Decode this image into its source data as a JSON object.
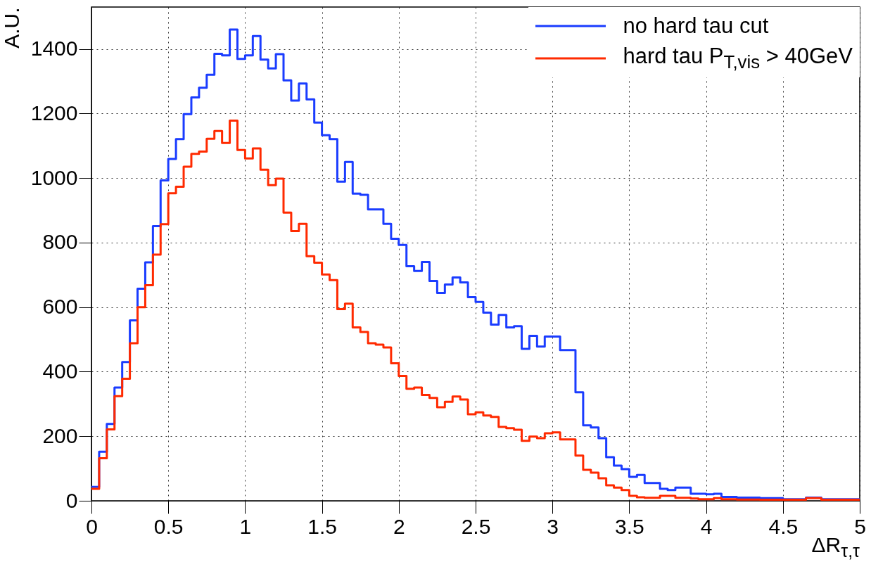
{
  "chart_data": {
    "type": "histogram",
    "xlabel": "ΔR$_{τ,τ}$",
    "ylabel": "A.U.",
    "bins": [
      0,
      0.05,
      0.1,
      0.15,
      0.2,
      0.25,
      0.3,
      0.35,
      0.4,
      0.45,
      0.5,
      0.55,
      0.6,
      0.65,
      0.7,
      0.75,
      0.8,
      0.85,
      0.9,
      0.95,
      1,
      1.05,
      1.1,
      1.15,
      1.2,
      1.25,
      1.3,
      1.35,
      1.4,
      1.45,
      1.5,
      1.55,
      1.6,
      1.65,
      1.7,
      1.75,
      1.8,
      1.85,
      1.9,
      1.95,
      2,
      2.05,
      2.1,
      2.15,
      2.2,
      2.25,
      2.3,
      2.35,
      2.4,
      2.45,
      2.5,
      2.55,
      2.6,
      2.65,
      2.7,
      2.75,
      2.8,
      2.85,
      2.9,
      2.95,
      3,
      3.05,
      3.1,
      3.15,
      3.2,
      3.25,
      3.3,
      3.35,
      3.4,
      3.45,
      3.5,
      3.55,
      3.6,
      3.65,
      3.7,
      3.75,
      3.8,
      3.85,
      3.9,
      3.95,
      4,
      4.05,
      4.1,
      4.15,
      4.2,
      4.25,
      4.3,
      4.35,
      4.4,
      4.45,
      4.5,
      4.55,
      4.6,
      4.65,
      4.7,
      4.75,
      4.8,
      4.85,
      4.9,
      4.95,
      5
    ],
    "series": [
      {
        "name": "no hard tau cut",
        "color": "#1a3cff",
        "values": [
          43,
          152,
          238,
          351,
          430,
          559,
          657,
          739,
          851,
          993,
          1059,
          1121,
          1198,
          1250,
          1280,
          1320,
          1385,
          1380,
          1460,
          1369,
          1380,
          1440,
          1367,
          1340,
          1384,
          1303,
          1240,
          1293,
          1244,
          1172,
          1133,
          1121,
          989,
          1050,
          952,
          948,
          903,
          903,
          858,
          812,
          793,
          727,
          712,
          740,
          681,
          644,
          670,
          692,
          677,
          631,
          616,
          583,
          546,
          576,
          537,
          541,
          471,
          511,
          478,
          509,
          509,
          467,
          467,
          336,
          234,
          227,
          194,
          135,
          109,
          98,
          74,
          80,
          55,
          55,
          37,
          33,
          41,
          41,
          22,
          22,
          20,
          22,
          12,
          12,
          10,
          10,
          10,
          8,
          8,
          8,
          5,
          5,
          5,
          10,
          10,
          5,
          5,
          5,
          5,
          5
        ]
      },
      {
        "name": "hard tau P$_{T,vis}$ > 40GeV",
        "color": "#ff2a00",
        "values": [
          37,
          132,
          221,
          324,
          378,
          488,
          600,
          668,
          763,
          857,
          953,
          973,
          1035,
          1075,
          1082,
          1122,
          1146,
          1109,
          1178,
          1087,
          1061,
          1092,
          1026,
          978,
          998,
          893,
          836,
          858,
          758,
          738,
          701,
          684,
          594,
          611,
          537,
          523,
          488,
          484,
          475,
          426,
          387,
          347,
          351,
          328,
          319,
          290,
          307,
          323,
          314,
          268,
          274,
          264,
          260,
          229,
          225,
          220,
          186,
          199,
          194,
          209,
          212,
          190,
          190,
          140,
          96,
          87,
          70,
          48,
          41,
          33,
          15,
          11,
          9,
          9,
          15,
          15,
          9,
          9,
          7,
          5,
          5,
          8,
          5,
          5,
          4,
          4,
          4,
          3,
          3,
          3,
          3,
          3,
          3,
          8,
          8,
          3,
          3,
          3,
          3,
          3
        ]
      }
    ],
    "xlim": [
      0,
      5
    ],
    "xticks": [
      0,
      0.5,
      1,
      1.5,
      2,
      2.5,
      3,
      3.5,
      4,
      4.5,
      5
    ],
    "ylim": [
      0,
      1530
    ],
    "yticks": [
      0,
      200,
      400,
      600,
      800,
      1000,
      1200,
      1400
    ],
    "grid": true,
    "legend": "top right",
    "line_style": "solid"
  }
}
